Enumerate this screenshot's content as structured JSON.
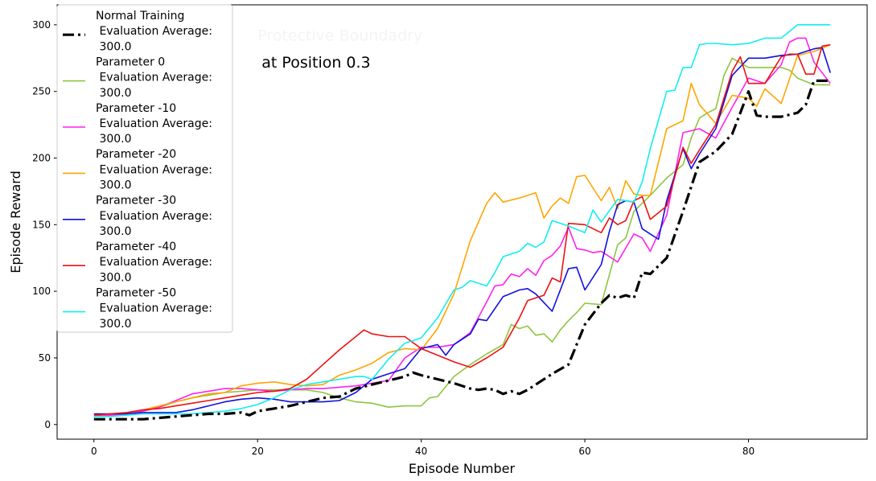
{
  "chart_data": {
    "type": "line",
    "xlabel": "Episode Number",
    "ylabel": "Episode Reward",
    "xlim": [
      -4.5,
      94.5
    ],
    "ylim": [
      -11,
      315
    ],
    "xticks": [
      0,
      20,
      40,
      60,
      80
    ],
    "yticks": [
      0,
      50,
      100,
      150,
      200,
      250,
      300
    ],
    "grid": false,
    "legend_position": "upper-left",
    "annotations": [
      {
        "text": "Protective Boundadry",
        "x": 20,
        "y": 288,
        "color": "#f4f4f4"
      },
      {
        "text": "at Position 0.3",
        "x": 20.5,
        "y": 268,
        "color": "#000000"
      }
    ],
    "series": [
      {
        "name": "Normal Training\n Evaluation Average:\n 300.0",
        "color": "#000000",
        "style": "dashdot",
        "width": 3.2,
        "x": [
          0,
          2,
          4,
          6,
          8,
          10,
          12,
          14,
          16,
          18,
          19,
          20,
          22,
          24,
          26,
          28,
          30,
          31,
          32,
          34,
          36,
          38,
          39,
          40,
          42,
          44,
          46,
          47,
          48,
          49,
          50,
          51,
          52,
          53,
          54,
          56,
          58,
          60,
          62,
          63,
          64,
          65,
          66,
          67,
          68,
          70,
          72,
          74,
          76,
          78,
          80,
          81,
          82,
          84,
          86,
          87,
          88,
          90
        ],
        "values": [
          4,
          4,
          4,
          4,
          5,
          6,
          7,
          8,
          8,
          9,
          7,
          10,
          12,
          14,
          17,
          20,
          21,
          24,
          27,
          30,
          33,
          36,
          39,
          37,
          34,
          31,
          27,
          26,
          27,
          26,
          23,
          25,
          23,
          26,
          30,
          38,
          45,
          75,
          91,
          97,
          95,
          97,
          95,
          114,
          113,
          125,
          160,
          197,
          205,
          218,
          250,
          232,
          231,
          231,
          234,
          240,
          258,
          258
        ]
      },
      {
        "name": "Parameter 0\n Evaluation Average:\n 300.0",
        "color": "#8dc63f",
        "style": "solid",
        "width": 1.6,
        "x": [
          0,
          2,
          4,
          6,
          8,
          10,
          12,
          14,
          16,
          18,
          20,
          22,
          24,
          26,
          28,
          30,
          32,
          34,
          36,
          38,
          40,
          41,
          42,
          44,
          46,
          48,
          50,
          51,
          52,
          53,
          54,
          55,
          56,
          57,
          58,
          59,
          60,
          62,
          64,
          65,
          66,
          68,
          70,
          72,
          73,
          74,
          75,
          76,
          77,
          78,
          80,
          82,
          84,
          85,
          86,
          88,
          90
        ],
        "values": [
          6,
          7,
          8,
          10,
          13,
          17,
          20,
          22,
          24,
          25,
          26,
          26,
          26,
          26,
          24,
          20,
          17,
          16,
          13,
          14,
          14,
          20,
          21,
          36,
          45,
          53,
          60,
          75,
          72,
          74,
          67,
          68,
          62,
          71,
          78,
          84,
          91,
          90,
          135,
          140,
          160,
          172,
          185,
          195,
          215,
          230,
          234,
          237,
          262,
          275,
          268,
          268,
          268,
          266,
          260,
          255,
          255
        ]
      },
      {
        "name": "Parameter -10\n Evaluation Average:\n 300.0",
        "color": "#ff22ee",
        "style": "solid",
        "width": 1.6,
        "x": [
          0,
          2,
          4,
          6,
          8,
          10,
          12,
          14,
          16,
          18,
          20,
          22,
          24,
          26,
          28,
          30,
          32,
          34,
          36,
          38,
          40,
          42,
          44,
          46,
          48,
          49,
          50,
          51,
          52,
          53,
          54,
          55,
          56,
          57,
          58,
          59,
          60,
          61,
          62,
          64,
          66,
          67,
          68,
          70,
          72,
          74,
          76,
          78,
          80,
          82,
          84,
          85,
          86,
          87,
          88,
          90
        ],
        "values": [
          6,
          7,
          8,
          10,
          13,
          18,
          23,
          25,
          27,
          27,
          26,
          25,
          26,
          27,
          27,
          28,
          29,
          31,
          33,
          50,
          58,
          58,
          60,
          69,
          92,
          104,
          105,
          113,
          111,
          117,
          112,
          123,
          127,
          134,
          148,
          132,
          131,
          129,
          130,
          122,
          143,
          140,
          130,
          157,
          219,
          222,
          215,
          238,
          260,
          256,
          270,
          287,
          290,
          290,
          272,
          256
        ]
      },
      {
        "name": "Parameter -20\n Evaluation Average:\n 300.0",
        "color": "#ffa500",
        "style": "solid",
        "width": 1.6,
        "x": [
          0,
          2,
          4,
          6,
          8,
          10,
          12,
          14,
          16,
          18,
          20,
          22,
          24,
          26,
          28,
          30,
          32,
          34,
          36,
          38,
          40,
          42,
          44,
          46,
          48,
          49,
          50,
          52,
          54,
          55,
          56,
          57,
          58,
          59,
          60,
          62,
          63,
          64,
          65,
          66,
          67,
          68,
          70,
          72,
          73,
          74,
          76,
          78,
          80,
          81,
          82,
          84,
          86,
          88,
          90
        ],
        "values": [
          7,
          8,
          9,
          11,
          14,
          17,
          20,
          23,
          24,
          29,
          31,
          32,
          30,
          29,
          30,
          37,
          41,
          46,
          54,
          57,
          56,
          72,
          98,
          138,
          166,
          174,
          167,
          170,
          174,
          155,
          164,
          170,
          166,
          186,
          187,
          168,
          178,
          162,
          183,
          173,
          172,
          172,
          222,
          228,
          256,
          240,
          226,
          247,
          245,
          239,
          252,
          241,
          277,
          280,
          285
        ]
      },
      {
        "name": "Parameter -30\n Evaluation Average:\n 300.0",
        "color": "#1010e0",
        "style": "solid",
        "width": 1.6,
        "x": [
          0,
          2,
          4,
          6,
          8,
          10,
          12,
          14,
          16,
          18,
          20,
          22,
          24,
          26,
          28,
          30,
          32,
          34,
          36,
          38,
          40,
          42,
          43,
          44,
          46,
          47,
          48,
          50,
          52,
          53,
          54,
          56,
          58,
          59,
          60,
          62,
          63,
          64,
          65,
          66,
          67,
          68,
          69,
          70,
          72,
          73,
          74,
          76,
          78,
          80,
          82,
          84,
          86,
          88,
          89,
          90
        ],
        "values": [
          8,
          8,
          8,
          9,
          9,
          9,
          11,
          14,
          17,
          19,
          20,
          19,
          17,
          17,
          17,
          18,
          24,
          34,
          38,
          42,
          57,
          60,
          52,
          60,
          68,
          79,
          78,
          96,
          101,
          102,
          98,
          85,
          117,
          118,
          101,
          120,
          145,
          165,
          168,
          167,
          147,
          143,
          139,
          168,
          207,
          192,
          203,
          222,
          262,
          275,
          275,
          277,
          278,
          282,
          283,
          264
        ]
      },
      {
        "name": "Parameter -40\n Evaluation Average:\n 300.0",
        "color": "#ee1111",
        "style": "solid",
        "width": 1.6,
        "x": [
          0,
          2,
          4,
          6,
          8,
          10,
          12,
          14,
          16,
          18,
          20,
          22,
          24,
          26,
          28,
          30,
          32,
          33,
          34,
          36,
          38,
          40,
          42,
          44,
          46,
          48,
          50,
          52,
          53,
          54,
          55,
          56,
          57,
          58,
          60,
          62,
          63,
          64,
          65,
          66,
          67,
          68,
          70,
          72,
          73,
          74,
          76,
          78,
          79,
          80,
          82,
          84,
          85,
          86,
          87,
          88,
          89,
          90
        ],
        "values": [
          7,
          8,
          9,
          11,
          12,
          14,
          16,
          18,
          20,
          22,
          24,
          25,
          27,
          34,
          45,
          56,
          66,
          71,
          68,
          66,
          66,
          57,
          52,
          47,
          43,
          50,
          58,
          80,
          93,
          95,
          97,
          110,
          107,
          151,
          150,
          144,
          155,
          150,
          153,
          168,
          171,
          154,
          164,
          208,
          196,
          206,
          225,
          265,
          276,
          256,
          256,
          276,
          278,
          278,
          263,
          263,
          284,
          285
        ]
      },
      {
        "name": "Parameter -50\n Evaluation Average:\n 300.0",
        "color": "#11eeee",
        "style": "solid",
        "width": 1.6,
        "x": [
          0,
          2,
          4,
          6,
          8,
          10,
          12,
          14,
          16,
          18,
          20,
          22,
          24,
          26,
          28,
          30,
          32,
          33,
          34,
          36,
          38,
          40,
          42,
          44,
          45,
          46,
          48,
          49,
          50,
          52,
          53,
          54,
          55,
          56,
          58,
          60,
          61,
          62,
          64,
          66,
          67,
          68,
          70,
          71,
          72,
          73,
          74,
          75,
          76,
          78,
          80,
          82,
          84,
          86,
          88,
          90
        ],
        "values": [
          6,
          6,
          7,
          8,
          8,
          8,
          8,
          9,
          10,
          12,
          15,
          20,
          26,
          30,
          32,
          34,
          36,
          36,
          34,
          49,
          61,
          65,
          80,
          101,
          103,
          108,
          104,
          114,
          126,
          130,
          136,
          133,
          137,
          153,
          149,
          144,
          161,
          152,
          169,
          167,
          182,
          207,
          250,
          251,
          268,
          268,
          285,
          286,
          286,
          285,
          286,
          290,
          290,
          300,
          300,
          300
        ]
      }
    ]
  }
}
